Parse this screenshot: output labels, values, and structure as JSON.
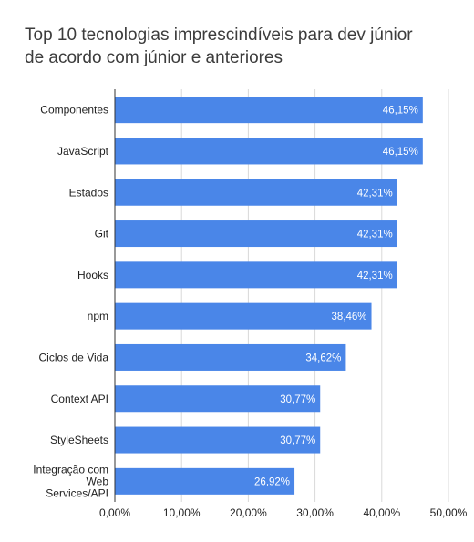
{
  "chart_data": {
    "type": "bar",
    "orientation": "horizontal",
    "title_lines": [
      "Top 10 tecnologias imprescindíveis para dev júnior",
      "de acordo com júnior e anteriores"
    ],
    "categories": [
      "Componentes",
      "JavaScript",
      "Estados",
      "Git",
      "Hooks",
      "npm",
      "Ciclos de Vida",
      "Context API",
      "StyleSheets",
      "Integração com Web Services/API"
    ],
    "category_label_lines": [
      [
        "Componentes"
      ],
      [
        "JavaScript"
      ],
      [
        "Estados"
      ],
      [
        "Git"
      ],
      [
        "Hooks"
      ],
      [
        "npm"
      ],
      [
        "Ciclos de Vida"
      ],
      [
        "Context API"
      ],
      [
        "StyleSheets"
      ],
      [
        "Integração com",
        "Web",
        "Services/API"
      ]
    ],
    "values": [
      46.15,
      46.15,
      42.31,
      42.31,
      42.31,
      38.46,
      34.62,
      30.77,
      30.77,
      26.92
    ],
    "data_labels": [
      "46,15%",
      "46,15%",
      "42,31%",
      "42,31%",
      "42,31%",
      "38,46%",
      "34,62%",
      "30,77%",
      "30,77%",
      "26,92%"
    ],
    "xlim": [
      0,
      50
    ],
    "xticks": [
      0,
      10,
      20,
      30,
      40,
      50
    ],
    "xtick_labels": [
      "0,00%",
      "10,00%",
      "20,00%",
      "30,00%",
      "40,00%",
      "50,00%"
    ],
    "grid": true,
    "legend": "none",
    "bar_color": "#4a86e8"
  }
}
